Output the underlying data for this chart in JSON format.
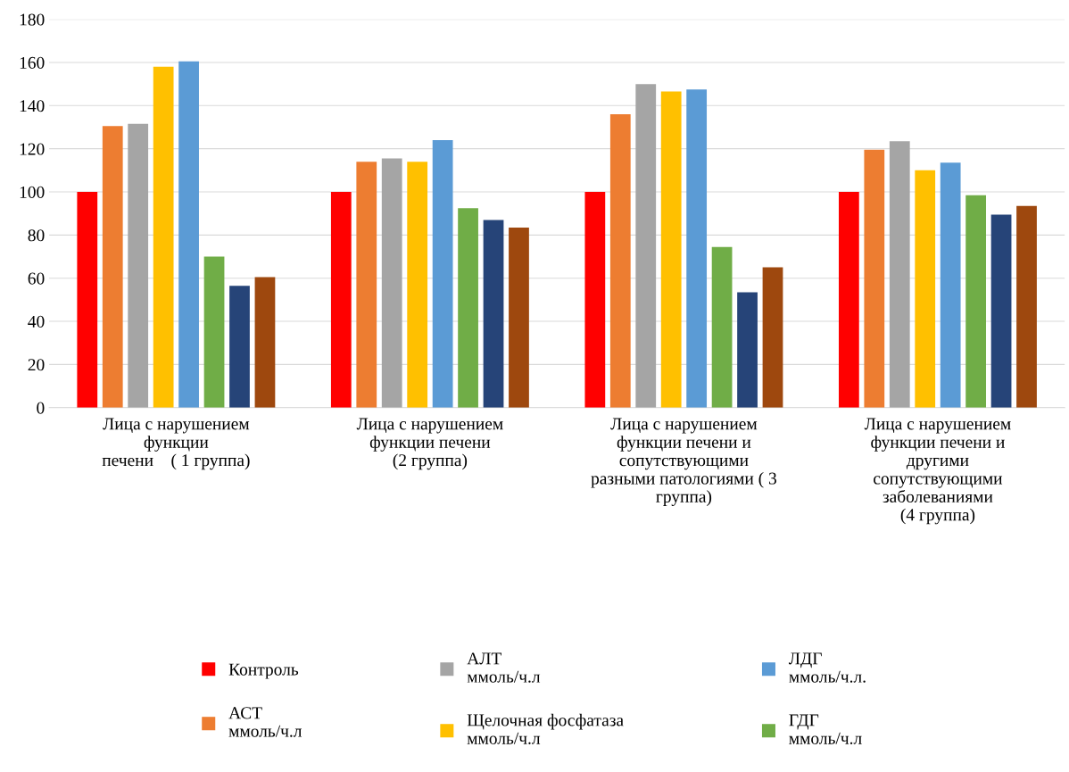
{
  "chart_data": {
    "type": "bar",
    "categories": [
      "Лица с нарушением\nфункции\nпечени    ( 1 группа)",
      "Лица с нарушением\nфункции печени\n(2 группа)",
      "Лица с нарушением\nфункции печени и\nсопутствующими\nразными патологиями ( 3\nгруппа)",
      "Лица с нарушением\nфункции печени и\nдругими\nсопутствующими\nзаболеваниями\n(4 группа)"
    ],
    "series": [
      {
        "name": "Контроль",
        "color": "#ff0000",
        "values": [
          100,
          100,
          100,
          100
        ]
      },
      {
        "name": "АСТ\nммоль/ч.л",
        "color": "#ed7d31",
        "values": [
          130.5,
          114,
          136,
          119.5
        ]
      },
      {
        "name": "АЛТ\nммоль/ч.л",
        "color": "#a5a5a5",
        "values": [
          131.5,
          115.5,
          150,
          123.5
        ]
      },
      {
        "name": "Щелочная фосфатаза\nммоль/ч.л",
        "color": "#ffc000",
        "values": [
          158,
          114,
          146.5,
          110
        ]
      },
      {
        "name": "ЛДГ\nммоль/ч.л.",
        "color": "#5b9bd5",
        "values": [
          160.5,
          124,
          147.5,
          113.5
        ]
      },
      {
        "name": "ГДГ\nммоль/ч.л",
        "color": "#70ad47",
        "values": [
          70,
          92.5,
          74.5,
          98.5
        ]
      },
      {
        "color": "#264478",
        "values": [
          56.5,
          87,
          53.5,
          89.5
        ]
      },
      {
        "color": "#9e480e",
        "values": [
          60.5,
          83.5,
          65,
          93.5
        ]
      }
    ],
    "ylim": [
      0,
      180
    ],
    "yticks": [
      0,
      20,
      40,
      60,
      80,
      100,
      120,
      140,
      160,
      180
    ],
    "grid": "y",
    "legend": "bottom"
  }
}
